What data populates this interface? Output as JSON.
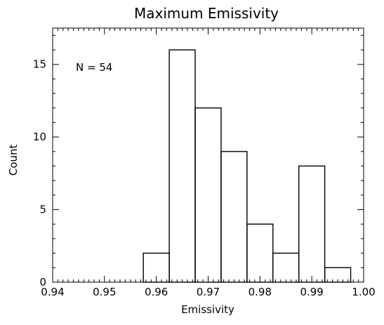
{
  "chart_data": {
    "type": "bar",
    "title": "Maximum Emissivity",
    "xlabel": "Emissivity",
    "ylabel": "Count",
    "annotation": "N = 54",
    "xlim": [
      0.94,
      1.0
    ],
    "ylim": [
      0,
      17.5
    ],
    "x_ticks": [
      "0.94",
      "0.95",
      "0.96",
      "0.97",
      "0.98",
      "0.99",
      "1.00"
    ],
    "y_ticks": [
      "0",
      "5",
      "10",
      "15"
    ],
    "bin_edges": [
      0.9575,
      0.9625,
      0.9675,
      0.9725,
      0.9775,
      0.9825,
      0.9875,
      0.9925,
      0.9975
    ],
    "values": [
      2,
      16,
      12,
      9,
      4,
      2,
      8,
      1
    ],
    "grid": false
  }
}
